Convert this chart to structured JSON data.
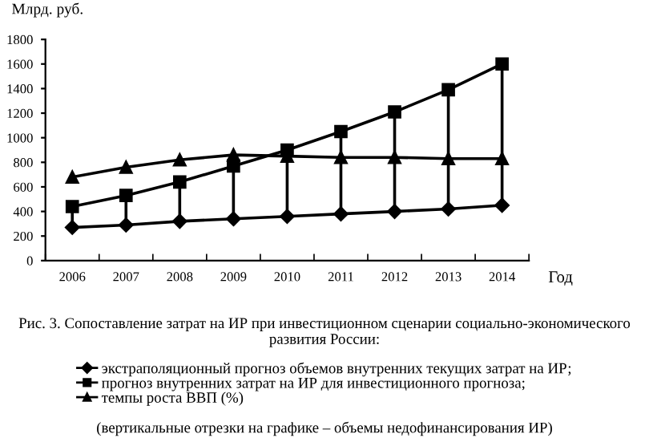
{
  "chart_data": {
    "type": "line",
    "title": "Рис. 3. Сопоставление затрат на ИР при инвестиционном сценарии социально-экономического развития России:",
    "xlabel": "Год",
    "ylabel": "Млрд. руб.",
    "categories": [
      "2006",
      "2007",
      "2008",
      "2009",
      "2010",
      "2011",
      "2012",
      "2013",
      "2014"
    ],
    "series": [
      {
        "name": "экстраполяционный прогноз объемов внутренних текущих затрат на ИР;",
        "color": "#000000",
        "marker": "diamond",
        "values": [
          270,
          290,
          320,
          340,
          360,
          380,
          400,
          420,
          450
        ]
      },
      {
        "name": "прогноз внутренних затрат на ИР для инвестиционного прогноза;",
        "color": "#000000",
        "marker": "square",
        "values": [
          440,
          530,
          640,
          770,
          900,
          1050,
          1210,
          1390,
          1600
        ],
        "errors": [
          [
            270,
            440
          ],
          [
            290,
            530
          ],
          [
            320,
            640
          ],
          [
            340,
            770
          ],
          [
            360,
            900
          ],
          [
            380,
            1050
          ],
          [
            400,
            1210
          ],
          [
            420,
            1390
          ],
          [
            450,
            1600
          ]
        ]
      },
      {
        "name": "темпы роста ВВП (%)",
        "color": "#000000",
        "marker": "triangle",
        "values": [
          680,
          760,
          820,
          860,
          850,
          840,
          840,
          830,
          830
        ]
      }
    ],
    "ylim": [
      0,
      1800
    ],
    "yticks": [
      0,
      200,
      400,
      600,
      800,
      1000,
      1200,
      1400,
      1600,
      1800
    ],
    "grid": false,
    "legend": "bottom",
    "line_style": "solid",
    "annotations": [
      "(вертикальные отрезки на графике – объемы недофинансирования ИР)"
    ]
  }
}
